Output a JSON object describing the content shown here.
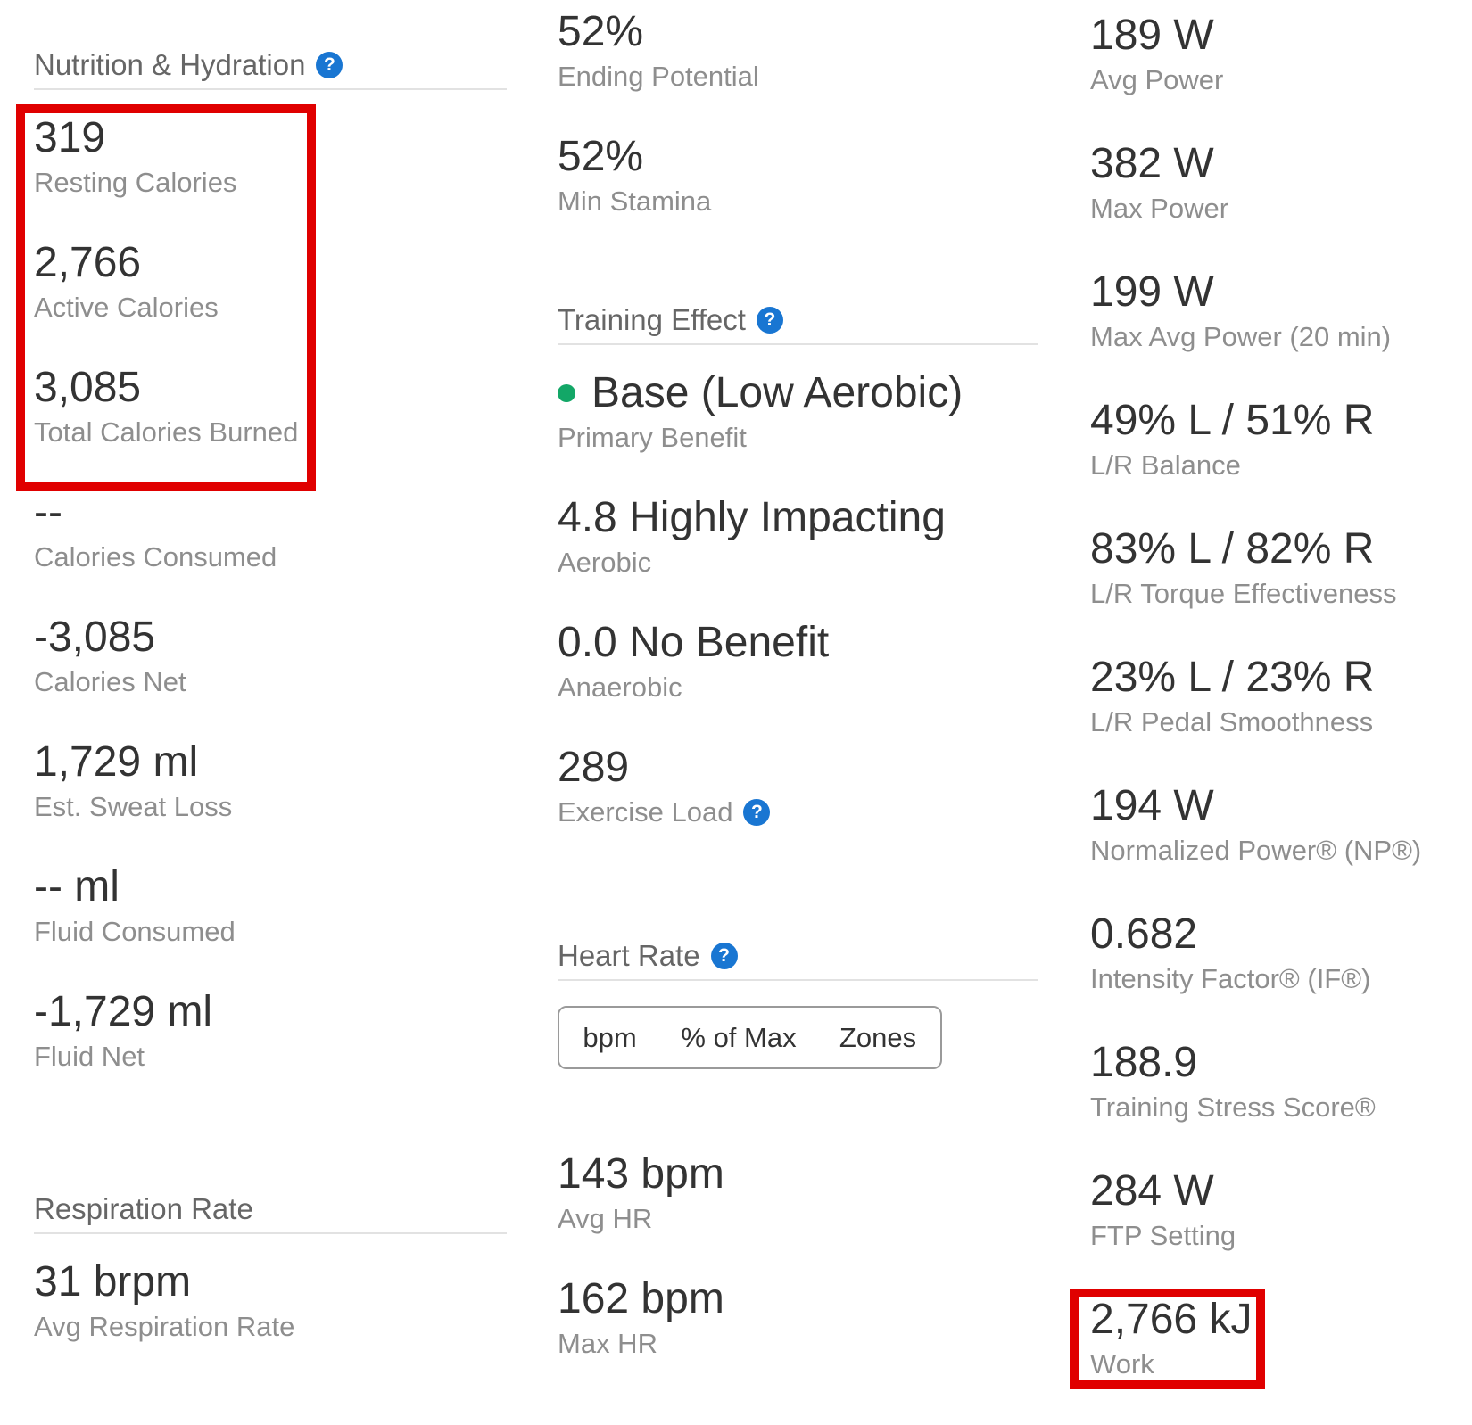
{
  "icons": {
    "help_glyph": "?"
  },
  "colors": {
    "help_blue": "#1976d2",
    "benefit_green": "#13a767",
    "highlight_red": "#e00000",
    "toggle_selected_bg": "#6e6e6e"
  },
  "left_column": {
    "header": "Nutrition & Hydration",
    "highlighted_stats": [
      {
        "value": "319",
        "label": "Resting Calories"
      },
      {
        "value": "2,766",
        "label": "Active Calories"
      },
      {
        "value": "3,085",
        "label": "Total Calories Burned"
      }
    ],
    "stats": [
      {
        "value": "--",
        "label": "Calories Consumed"
      },
      {
        "value": "-3,085",
        "label": "Calories Net"
      },
      {
        "value": "1,729 ml",
        "label": "Est. Sweat Loss"
      },
      {
        "value": "-- ml",
        "label": "Fluid Consumed"
      },
      {
        "value": "-1,729 ml",
        "label": "Fluid Net"
      }
    ],
    "header_2": "Respiration Rate",
    "stats_2": [
      {
        "value": "31 brpm",
        "label": "Avg Respiration Rate"
      }
    ]
  },
  "middle_column": {
    "stamina_stats": [
      {
        "value": "52%",
        "label": "Ending Potential"
      },
      {
        "value": "52%",
        "label": "Min Stamina"
      }
    ],
    "training_effect": {
      "header": "Training Effect",
      "primary_benefit": {
        "value": "Base (Low Aerobic)",
        "label": "Primary Benefit"
      },
      "aerobic": {
        "value": "4.8 Highly Impacting",
        "label": "Aerobic"
      },
      "anaerobic": {
        "value": "0.0 No Benefit",
        "label": "Anaerobic"
      },
      "exercise_load": {
        "value": "289",
        "label": "Exercise Load"
      }
    },
    "heart_rate": {
      "header": "Heart Rate",
      "toggle_options": [
        "bpm",
        "% of Max",
        "Zones"
      ],
      "selected_option": "bpm",
      "stats": [
        {
          "value": "143 bpm",
          "label": "Avg HR"
        },
        {
          "value": "162 bpm",
          "label": "Max HR"
        }
      ]
    }
  },
  "right_column": {
    "stats": [
      {
        "value": "189 W",
        "label": "Avg Power"
      },
      {
        "value": "382 W",
        "label": "Max Power"
      },
      {
        "value": "199 W",
        "label": "Max Avg Power (20 min)"
      },
      {
        "value": "49% L / 51% R",
        "label": "L/R Balance"
      },
      {
        "value": "83% L / 82% R",
        "label": "L/R Torque Effectiveness"
      },
      {
        "value": "23% L / 23% R",
        "label": "L/R Pedal Smoothness"
      },
      {
        "value": "194 W",
        "label": "Normalized Power® (NP®)"
      },
      {
        "value": "0.682",
        "label": "Intensity Factor® (IF®)"
      },
      {
        "value": "188.9",
        "label": "Training Stress Score®"
      },
      {
        "value": "284 W",
        "label": "FTP Setting"
      }
    ],
    "highlighted_stat": {
      "value": "2,766 kJ",
      "label": "Work"
    }
  }
}
